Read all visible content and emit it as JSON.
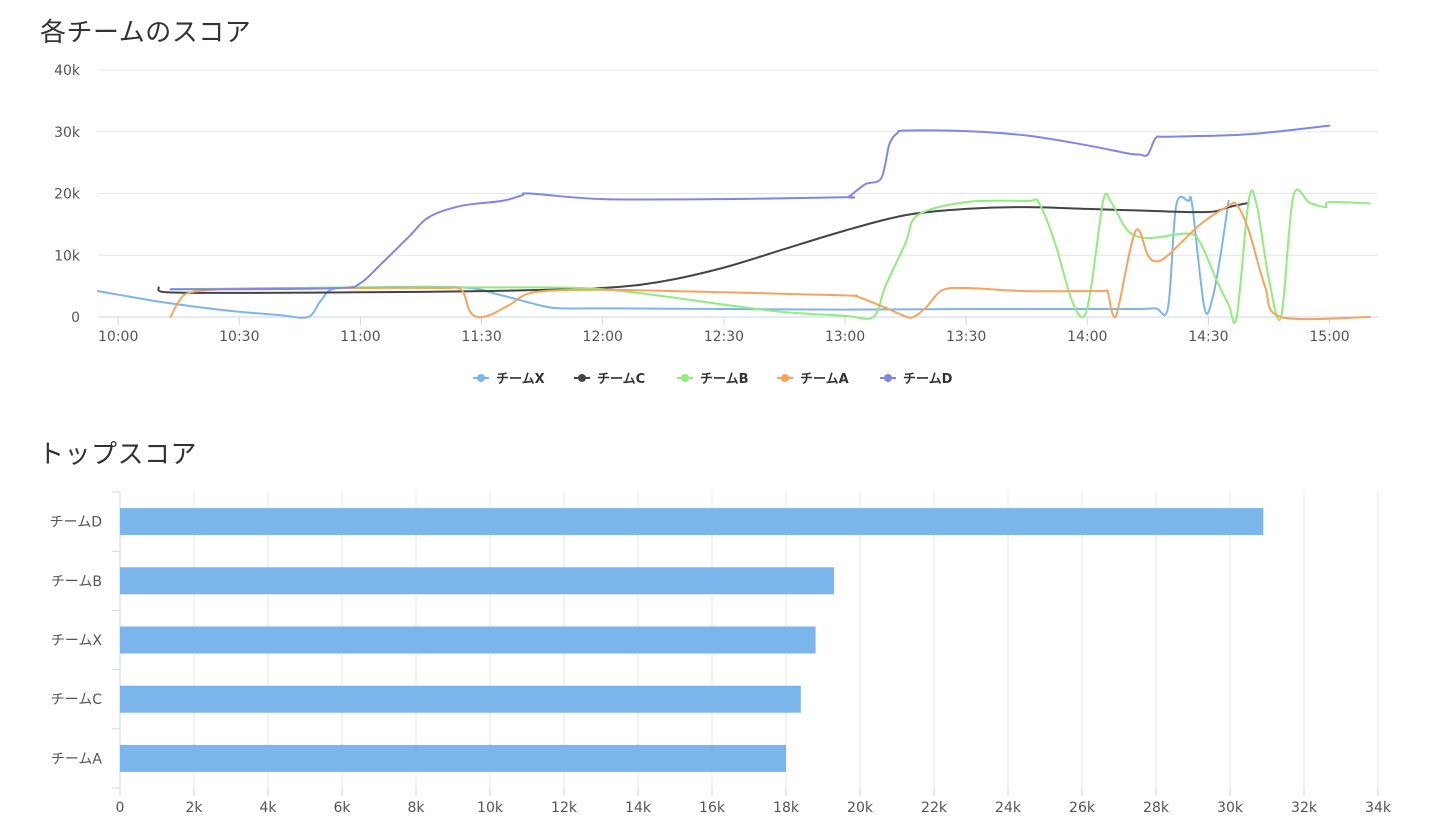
{
  "sections": {
    "line_title": "各チームのスコア",
    "bar_title": "トップスコア"
  },
  "colors": {
    "チームX": "#7cb5ec",
    "チームC": "#434348",
    "チームB": "#90ed7d",
    "チームA": "#f7a35c",
    "チームD": "#8085e9",
    "bar": "#7cb5ec",
    "grid": "#e6e6e6",
    "axis": "#ccd6eb"
  },
  "chart_data": [
    {
      "type": "line",
      "title": "各チームのスコア",
      "x_unit": "time",
      "xlim": [
        "09:55",
        "15:12"
      ],
      "ylim": [
        0,
        40000
      ],
      "y_ticks": [
        0,
        10000,
        20000,
        30000,
        40000
      ],
      "y_tick_labels": [
        "0",
        "10k",
        "20k",
        "30k",
        "40k"
      ],
      "x_ticks": [
        "10:00",
        "10:30",
        "11:00",
        "11:30",
        "12:00",
        "12:30",
        "13:00",
        "13:30",
        "14:00",
        "14:30",
        "15:00"
      ],
      "grid": true,
      "legend": "bottom-center",
      "series": [
        {
          "name": "チームX",
          "points": [
            [
              "09:55",
              4200
            ],
            [
              "10:10",
              2500
            ],
            [
              "10:25",
              1200
            ],
            [
              "10:40",
              300
            ],
            [
              "10:47",
              0
            ],
            [
              "10:50",
              2500
            ],
            [
              "10:53",
              4500
            ],
            [
              "11:00",
              4800
            ],
            [
              "11:25",
              4800
            ],
            [
              "11:35",
              3500
            ],
            [
              "11:45",
              1800
            ],
            [
              "11:50",
              1400
            ],
            [
              "12:00",
              1400
            ],
            [
              "12:30",
              1300
            ],
            [
              "13:00",
              1200
            ],
            [
              "13:30",
              1300
            ],
            [
              "14:00",
              1300
            ],
            [
              "14:12",
              1300
            ],
            [
              "14:17",
              1400
            ],
            [
              "14:20",
              1500
            ],
            [
              "14:22",
              18000
            ],
            [
              "14:25",
              18800
            ],
            [
              "14:26",
              18000
            ],
            [
              "14:29",
              1500
            ],
            [
              "14:31",
              3000
            ],
            [
              "14:33",
              10000
            ],
            [
              "14:35",
              18800
            ]
          ]
        },
        {
          "name": "チームC",
          "points": [
            [
              "10:10",
              4800
            ],
            [
              "10:12",
              4000
            ],
            [
              "10:30",
              3900
            ],
            [
              "11:00",
              4000
            ],
            [
              "11:30",
              4200
            ],
            [
              "12:00",
              4700
            ],
            [
              "12:15",
              5800
            ],
            [
              "12:30",
              8000
            ],
            [
              "12:45",
              11000
            ],
            [
              "13:00",
              14000
            ],
            [
              "13:15",
              16500
            ],
            [
              "13:30",
              17500
            ],
            [
              "13:45",
              17800
            ],
            [
              "14:00",
              17500
            ],
            [
              "14:15",
              17200
            ],
            [
              "14:30",
              17000
            ],
            [
              "14:35",
              17800
            ],
            [
              "14:40",
              18500
            ]
          ]
        },
        {
          "name": "チームB",
          "points": [
            [
              "10:13",
              4500
            ],
            [
              "10:30",
              4600
            ],
            [
              "11:00",
              4800
            ],
            [
              "11:30",
              4800
            ],
            [
              "12:00",
              4500
            ],
            [
              "12:30",
              2000
            ],
            [
              "12:45",
              800
            ],
            [
              "13:00",
              200
            ],
            [
              "13:07",
              0
            ],
            [
              "13:10",
              5000
            ],
            [
              "13:15",
              12000
            ],
            [
              "13:18",
              16500
            ],
            [
              "13:30",
              18600
            ],
            [
              "13:45",
              18800
            ],
            [
              "13:48",
              18500
            ],
            [
              "13:52",
              12000
            ],
            [
              "13:56",
              3000
            ],
            [
              "13:59",
              0
            ],
            [
              "14:01",
              5000
            ],
            [
              "14:04",
              19000
            ],
            [
              "14:06",
              18500
            ],
            [
              "14:10",
              14000
            ],
            [
              "14:15",
              12800
            ],
            [
              "14:25",
              13500
            ],
            [
              "14:28",
              12000
            ],
            [
              "14:32",
              6000
            ],
            [
              "14:35",
              2000
            ],
            [
              "14:37",
              0
            ],
            [
              "14:40",
              19000
            ],
            [
              "14:42",
              18000
            ],
            [
              "14:45",
              6000
            ],
            [
              "14:48",
              0
            ],
            [
              "14:51",
              19500
            ],
            [
              "14:55",
              18500
            ],
            [
              "14:59",
              17800
            ],
            [
              "15:00",
              18600
            ],
            [
              "15:10",
              18400
            ]
          ]
        },
        {
          "name": "チームA",
          "points": [
            [
              "10:13",
              0
            ],
            [
              "10:15",
              2500
            ],
            [
              "10:18",
              4000
            ],
            [
              "10:30",
              4600
            ],
            [
              "11:00",
              4700
            ],
            [
              "11:20",
              4700
            ],
            [
              "11:25",
              4400
            ],
            [
              "11:27",
              1000
            ],
            [
              "11:29",
              0
            ],
            [
              "11:32",
              300
            ],
            [
              "11:37",
              2000
            ],
            [
              "11:43",
              4000
            ],
            [
              "12:00",
              4400
            ],
            [
              "12:30",
              4000
            ],
            [
              "13:00",
              3500
            ],
            [
              "13:03",
              3300
            ],
            [
              "13:10",
              1500
            ],
            [
              "13:15",
              100
            ],
            [
              "13:17",
              0
            ],
            [
              "13:20",
              1500
            ],
            [
              "13:24",
              4300
            ],
            [
              "13:30",
              4700
            ],
            [
              "13:45",
              4200
            ],
            [
              "14:03",
              4200
            ],
            [
              "14:05",
              4100
            ],
            [
              "14:06",
              1000
            ],
            [
              "14:07",
              0
            ],
            [
              "14:08",
              2500
            ],
            [
              "14:12",
              14000
            ],
            [
              "14:15",
              10000
            ],
            [
              "14:17",
              9000
            ],
            [
              "14:20",
              10000
            ],
            [
              "14:28",
              15000
            ],
            [
              "14:35",
              18000
            ],
            [
              "14:37",
              18200
            ],
            [
              "14:40",
              14000
            ],
            [
              "14:44",
              5000
            ],
            [
              "14:48",
              0
            ],
            [
              "15:10",
              0
            ]
          ]
        },
        {
          "name": "チームD",
          "points": [
            [
              "10:13",
              4500
            ],
            [
              "10:30",
              4500
            ],
            [
              "10:55",
              4700
            ],
            [
              "11:00",
              5500
            ],
            [
              "11:05",
              8500
            ],
            [
              "11:12",
              13000
            ],
            [
              "11:17",
              16200
            ],
            [
              "11:25",
              18000
            ],
            [
              "11:35",
              18800
            ],
            [
              "11:40",
              19700
            ],
            [
              "11:42",
              20000
            ],
            [
              "12:00",
              19100
            ],
            [
              "12:30",
              19100
            ],
            [
              "13:00",
              19400
            ],
            [
              "13:01",
              19500
            ],
            [
              "13:05",
              21500
            ],
            [
              "13:09",
              22500
            ],
            [
              "13:11",
              28000
            ],
            [
              "13:13",
              29800
            ],
            [
              "13:15",
              30200
            ],
            [
              "13:30",
              30100
            ],
            [
              "13:45",
              29400
            ],
            [
              "14:00",
              27800
            ],
            [
              "14:10",
              26500
            ],
            [
              "14:13",
              26300
            ],
            [
              "14:15",
              26300
            ],
            [
              "14:17",
              29000
            ],
            [
              "14:20",
              29200
            ],
            [
              "14:40",
              29600
            ],
            [
              "15:00",
              31000
            ]
          ]
        }
      ]
    },
    {
      "type": "bar",
      "orientation": "horizontal",
      "title": "トップスコア",
      "categories": [
        "チームD",
        "チームB",
        "チームX",
        "チームC",
        "チームA"
      ],
      "values": [
        30900,
        19300,
        18800,
        18400,
        18000
      ],
      "xlim": [
        0,
        34000
      ],
      "x_ticks": [
        0,
        2000,
        4000,
        6000,
        8000,
        10000,
        12000,
        14000,
        16000,
        18000,
        20000,
        22000,
        24000,
        26000,
        28000,
        30000,
        32000,
        34000
      ],
      "x_tick_labels": [
        "0",
        "2k",
        "4k",
        "6k",
        "8k",
        "10k",
        "12k",
        "14k",
        "16k",
        "18k",
        "20k",
        "22k",
        "24k",
        "26k",
        "28k",
        "30k",
        "32k",
        "34k"
      ],
      "grid": true,
      "legend": "none"
    }
  ]
}
